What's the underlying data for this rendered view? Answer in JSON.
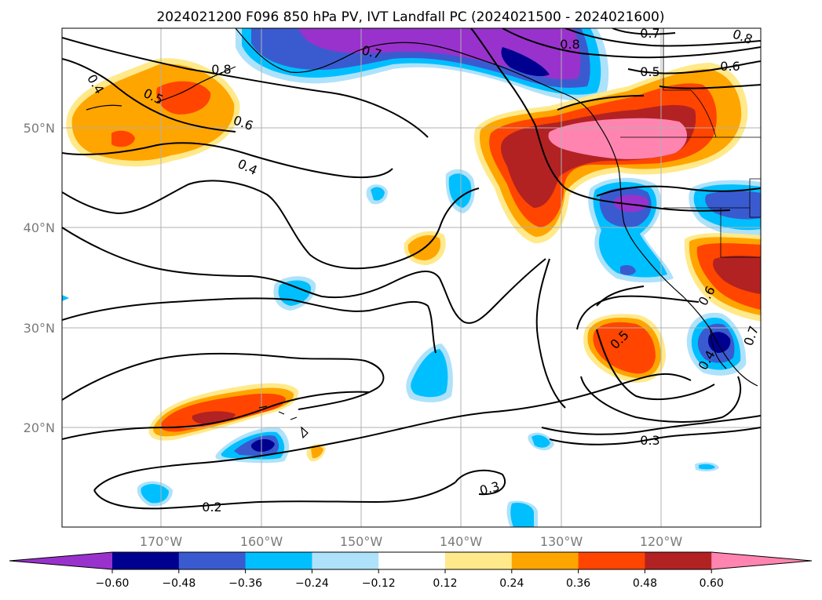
{
  "title": "2024021200 F096 850 hPa PV, IVT Landfall PC (2024021500 - 2024021600)",
  "lat_labels": [
    "50°N",
    "40°N",
    "30°N",
    "20°N"
  ],
  "lon_labels": [
    "170°W",
    "160°W",
    "150°W",
    "140°W",
    "130°W",
    "120°W"
  ],
  "colorbar": {
    "ticks": [
      "−0.60",
      "−0.48",
      "−0.36",
      "−0.24",
      "−0.12",
      "0.12",
      "0.24",
      "0.36",
      "0.48",
      "0.60"
    ],
    "colors": [
      "#9932cc",
      "#000090",
      "#3a5bd0",
      "#00bfff",
      "#aee2fa",
      "#ffffff",
      "#ffe98a",
      "#ffa500",
      "#ff4500",
      "#b22222",
      "#ff85b0",
      "#ff85b0"
    ]
  },
  "contour_labels": [
    {
      "text": "0.8"
    },
    {
      "text": "0.4"
    },
    {
      "text": "0.5"
    },
    {
      "text": "0.6"
    },
    {
      "text": "0.4"
    },
    {
      "text": "0.7"
    },
    {
      "text": "0.8"
    },
    {
      "text": "0.7"
    },
    {
      "text": "0.8"
    },
    {
      "text": "0.6"
    },
    {
      "text": "0.5"
    },
    {
      "text": "0.5"
    },
    {
      "text": "0.4"
    },
    {
      "text": "0.3"
    },
    {
      "text": "0.3"
    },
    {
      "text": "0.2"
    },
    {
      "text": "0.6"
    },
    {
      "text": "0.7"
    }
  ]
}
